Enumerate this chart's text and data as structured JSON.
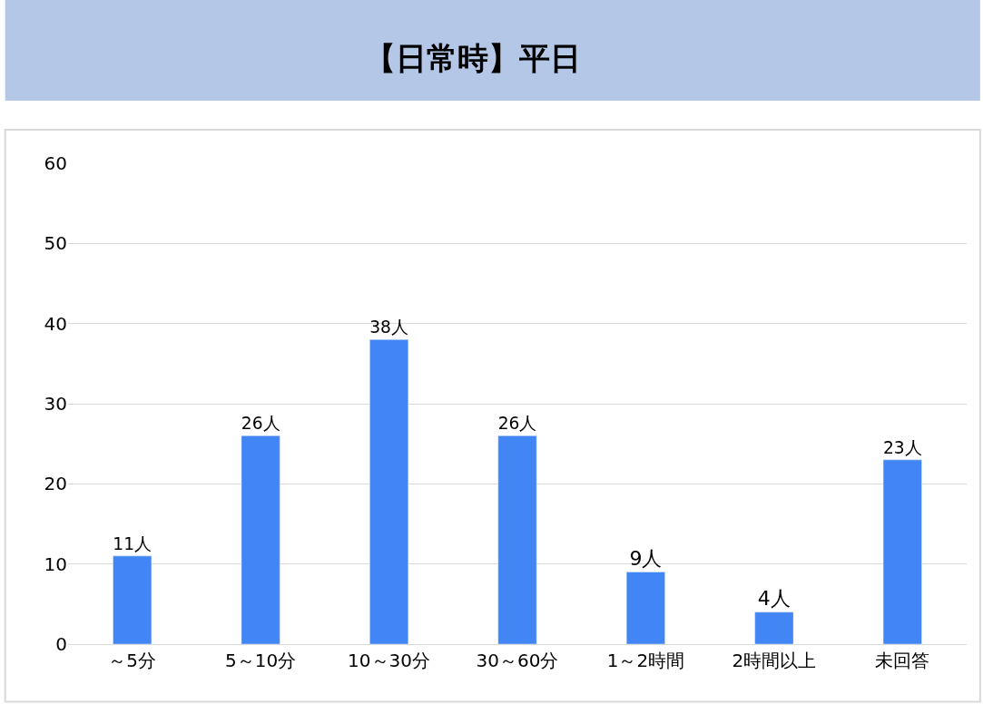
{
  "chart_data": {
    "type": "bar",
    "title": "【日常時】平日",
    "categories": [
      "～5分",
      "5～10分",
      "10～30分",
      "30～60分",
      "1～2時間",
      "2時間以上",
      "未回答"
    ],
    "values": [
      11,
      26,
      38,
      26,
      9,
      4,
      23
    ],
    "value_labels": [
      "11人",
      "26人",
      "38人",
      "26人",
      "9人",
      "4人",
      "23人"
    ],
    "color": "#4285f4",
    "ylim": [
      0,
      60
    ],
    "yticks": [
      0,
      10,
      20,
      30,
      40,
      50,
      60
    ],
    "grid": "y",
    "legend": false
  }
}
